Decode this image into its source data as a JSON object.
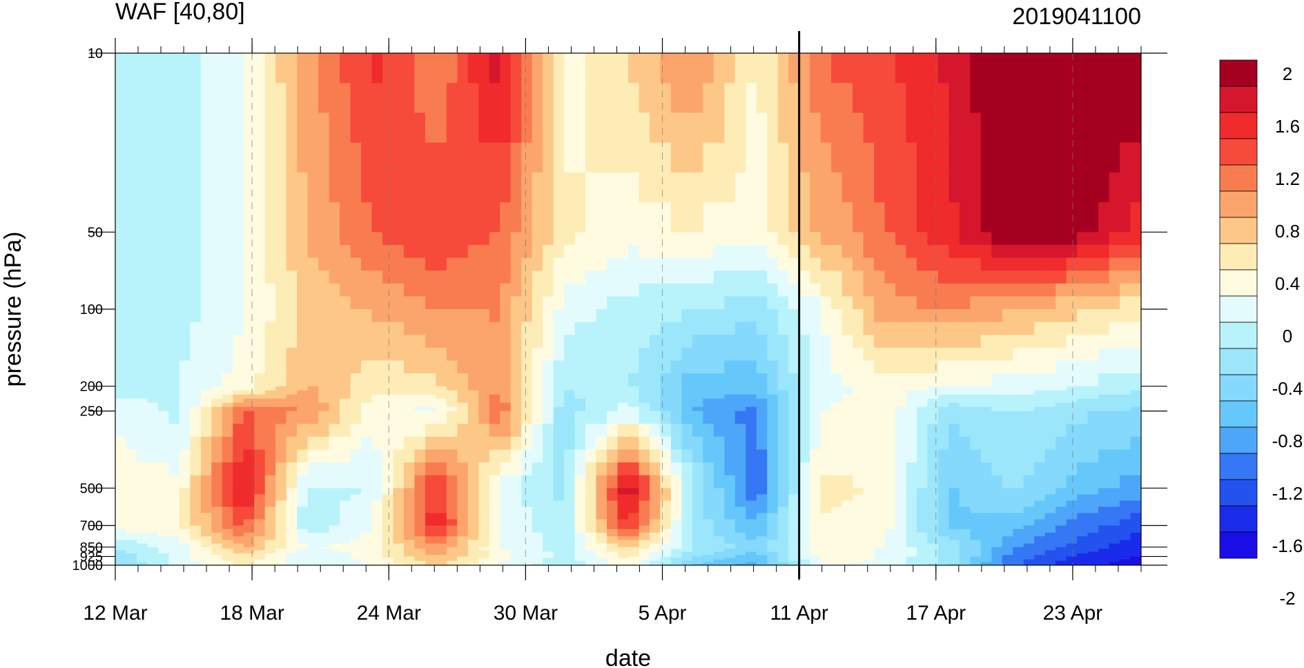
{
  "chart_data": {
    "type": "heatmap",
    "title": "WAF [40,80]",
    "subtitle": "2019041100",
    "xlabel": "date",
    "ylabel": "pressure (hPa)",
    "x_ticks": [
      "12 Mar",
      "18 Mar",
      "24 Mar",
      "30 Mar",
      "5 Apr",
      "11 Apr",
      "17 Apr",
      "23 Apr"
    ],
    "x_range": [
      "12 Mar",
      "27 Apr"
    ],
    "y_ticks": [
      "10",
      "50",
      "100",
      "200",
      "250",
      "500",
      "700",
      "850",
      "925",
      "1000"
    ],
    "y_range": [
      1000,
      10
    ],
    "y_scale": "log",
    "grid": "vertical dashed at x ticks",
    "marker_date": "11 Apr",
    "colorbar_labels": [
      "2",
      "1.6",
      "1.2",
      "0.8",
      "0.4",
      "0",
      "-0.4",
      "-0.8",
      "-1.2",
      "-1.6",
      "-2"
    ],
    "colorbar_colors": [
      "#a60021",
      "#d6162d",
      "#f02b2b",
      "#f64a3a",
      "#f97c50",
      "#fba56c",
      "#fdc887",
      "#feecb6",
      "#fefbe0",
      "#e4fbfe",
      "#b8f3fb",
      "#9be6fb",
      "#84d9fc",
      "#66c7fb",
      "#4da6fa",
      "#3577f5",
      "#2452ee",
      "#1a2bea",
      "#1a0ee6"
    ],
    "levels": [
      2,
      1.8,
      1.6,
      1.4,
      1.2,
      1.0,
      0.8,
      0.6,
      0.4,
      0.2,
      0,
      -0.2,
      -0.4,
      -0.6,
      -0.8,
      -1.0,
      -1.2,
      -1.4,
      -1.6,
      -1.8,
      -2
    ],
    "rows_pressure": [
      10,
      50,
      100,
      200,
      250,
      500,
      700,
      850,
      925,
      1000
    ],
    "values": [
      [
        -0.3,
        -0.2,
        0.1,
        0.9,
        1.5,
        1.0,
        1.8,
        0.2,
        0.6,
        1.1,
        0.3,
        1.2,
        1.4,
        1.7,
        2.2,
        2.2,
        2.2
      ],
      [
        -0.3,
        -0.2,
        0.1,
        0.8,
        1.2,
        1.4,
        1.2,
        0.4,
        0.2,
        0.3,
        0.2,
        0.8,
        1.2,
        1.6,
        2.1,
        2.0,
        1.5
      ],
      [
        -0.3,
        -0.2,
        0.1,
        0.6,
        0.8,
        1.0,
        1.0,
        0.0,
        -0.2,
        -0.3,
        -0.5,
        0.1,
        0.9,
        1.0,
        0.8,
        0.6,
        0.4
      ],
      [
        -0.3,
        -0.1,
        0.2,
        0.8,
        0.4,
        0.5,
        1.0,
        -0.3,
        -0.3,
        -0.9,
        -0.9,
        0.0,
        0.2,
        0.1,
        0.0,
        -0.1,
        -0.3
      ],
      [
        0.1,
        -0.2,
        1.2,
        1.0,
        0.2,
        0.0,
        1.2,
        -0.5,
        0.0,
        -1.0,
        -1.3,
        0.1,
        0.3,
        -0.5,
        -0.3,
        -0.5,
        -0.6
      ],
      [
        0.2,
        0.2,
        1.8,
        -0.2,
        -0.1,
        1.5,
        0.0,
        -0.4,
        1.9,
        -0.3,
        -1.4,
        0.4,
        0.3,
        -0.8,
        -0.5,
        -0.9,
        -1.1
      ],
      [
        0.2,
        0.3,
        1.3,
        -0.3,
        0.1,
        1.6,
        0.1,
        -0.3,
        1.5,
        -0.4,
        -1.0,
        0.3,
        0.2,
        -0.8,
        -0.9,
        -1.3,
        -1.6
      ],
      [
        -0.3,
        0.0,
        0.8,
        0.1,
        0.2,
        1.0,
        0.1,
        -0.2,
        0.6,
        -0.3,
        -0.7,
        0.2,
        0.1,
        -0.4,
        -1.2,
        -1.5,
        -1.8
      ],
      [
        -0.5,
        0.0,
        0.5,
        -0.1,
        0.2,
        0.8,
        0.2,
        -0.2,
        0.4,
        -0.5,
        -0.9,
        0.2,
        0.1,
        -0.4,
        -1.3,
        -1.7,
        -1.9
      ],
      [
        -0.6,
        0.0,
        0.4,
        0.0,
        0.1,
        0.6,
        0.1,
        -0.3,
        0.2,
        -0.8,
        -1.1,
        0.1,
        0.1,
        -0.5,
        -1.4,
        -1.8,
        -2.0
      ]
    ]
  }
}
